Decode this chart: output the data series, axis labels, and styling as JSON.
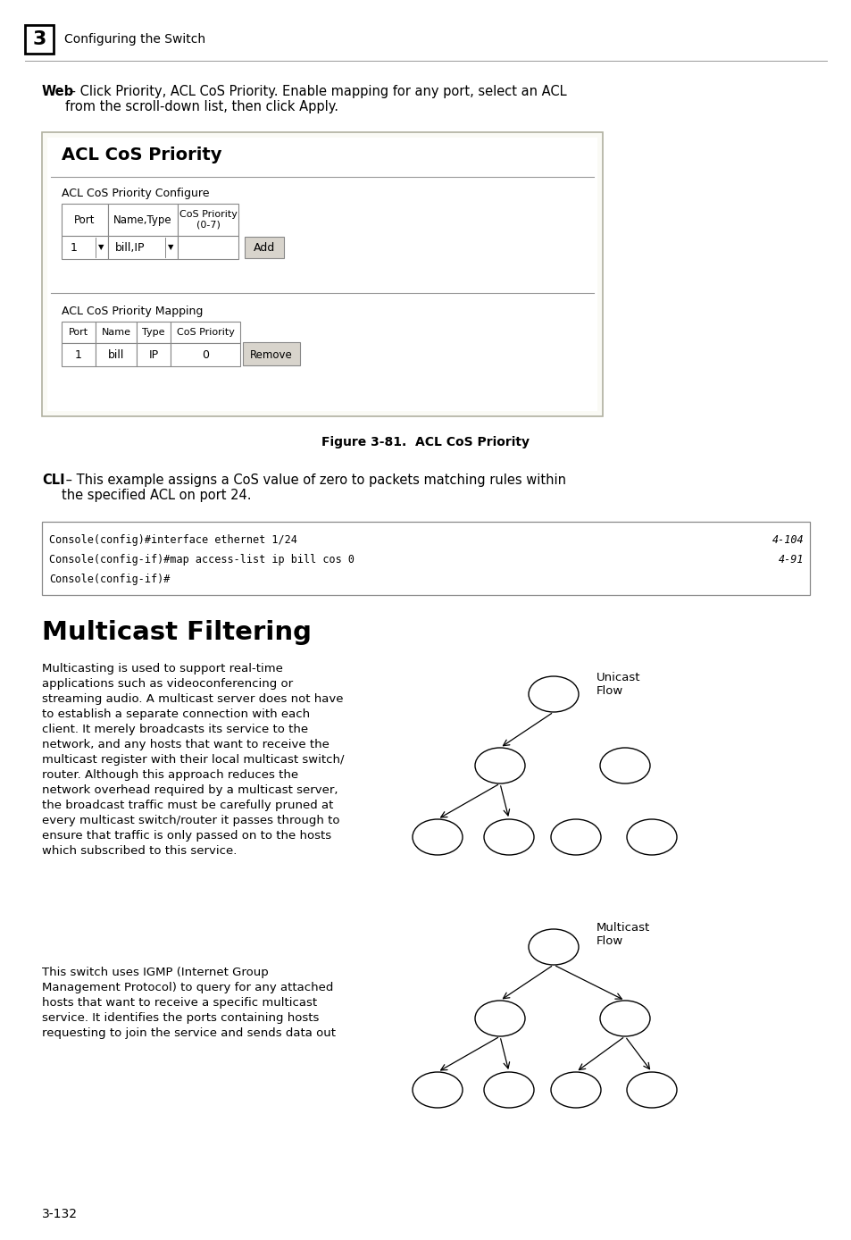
{
  "page_bg": "#ffffff",
  "header_num": "3",
  "header_text": "Configuring the Switch",
  "figure_box_title": "ACL CoS Priority",
  "section1_label": "ACL CoS Priority Configure",
  "table1_headers": [
    "Port",
    "Name,Type",
    "CoS Priority\n(0-7)"
  ],
  "section2_label": "ACL CoS Priority Mapping",
  "table2_headers": [
    "Port",
    "Name",
    "Type",
    "CoS Priority"
  ],
  "figure_caption": "Figure 3-81.  ACL CoS Priority",
  "cli_text_bold": "CLI",
  "cli_text_rest": " – This example assigns a CoS value of zero to packets matching rules within\nthe specified ACL on port 24.",
  "code_lines": [
    "Console(config)#interface ethernet 1/24",
    "Console(config-if)#map access-list ip bill cos 0",
    "Console(config-if)#"
  ],
  "code_refs": [
    "4-104",
    "4-91",
    ""
  ],
  "section_title": "Multicast Filtering",
  "body_text1": "Multicasting is used to support real-time\napplications such as videoconferencing or\nstreaming audio. A multicast server does not have\nto establish a separate connection with each\nclient. It merely broadcasts its service to the\nnetwork, and any hosts that want to receive the\nmulticast register with their local multicast switch/\nrouter. Although this approach reduces the\nnetwork overhead required by a multicast server,\nthe broadcast traffic must be carefully pruned at\nevery multicast switch/router it passes through to\nensure that traffic is only passed on to the hosts\nwhich subscribed to this service.",
  "body_text2": "This switch uses IGMP (Internet Group\nManagement Protocol) to query for any attached\nhosts that want to receive a specific multicast\nservice. It identifies the ports containing hosts\nrequesting to join the service and sends data out",
  "page_number": "3-132",
  "unicast_label": "Unicast\nFlow",
  "multicast_label": "Multicast\nFlow",
  "web_bold": "Web",
  "web_rest": " – Click Priority, ACL CoS Priority. Enable mapping for any port, select an ACL\nfrom the scroll-down list, then click Apply."
}
